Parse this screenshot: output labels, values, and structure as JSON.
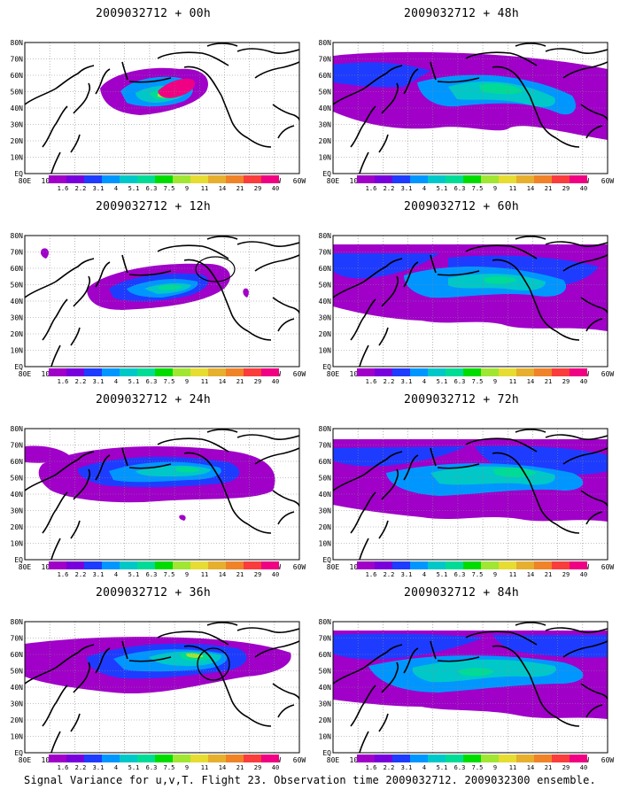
{
  "panels": [
    {
      "title": "2009032712 + 00h"
    },
    {
      "title": "2009032712 + 48h"
    },
    {
      "title": "2009032712 + 12h"
    },
    {
      "title": "2009032712 + 60h"
    },
    {
      "title": "2009032712 + 24h"
    },
    {
      "title": "2009032712 + 72h"
    },
    {
      "title": "2009032712 + 36h"
    },
    {
      "title": "2009032712 + 84h"
    }
  ],
  "lat_labels": [
    "80N",
    "70N",
    "60N",
    "50N",
    "40N",
    "30N",
    "20N",
    "10N",
    "EQ"
  ],
  "lon_labels": [
    "80E",
    "100E",
    "120E",
    "140E",
    "160E",
    "180",
    "160W",
    "140W",
    "120W",
    "100W",
    "80W",
    "60W"
  ],
  "legend": {
    "labels": [
      "1.6",
      "2.2",
      "3.1",
      "4",
      "5.1",
      "6.3",
      "7.5",
      "9",
      "11",
      "14",
      "21",
      "29",
      "40"
    ],
    "colors": [
      "#a000c8",
      "#7800dc",
      "#1e3cff",
      "#0096ff",
      "#00c8c8",
      "#00dc96",
      "#00dc00",
      "#a0e632",
      "#e6dc32",
      "#e6af2d",
      "#f08228",
      "#fa3c3c",
      "#f00082"
    ]
  },
  "caption": "Signal Variance for u,v,T. Flight 23. Observation time 2009032712. 2009032300 ensemble."
}
